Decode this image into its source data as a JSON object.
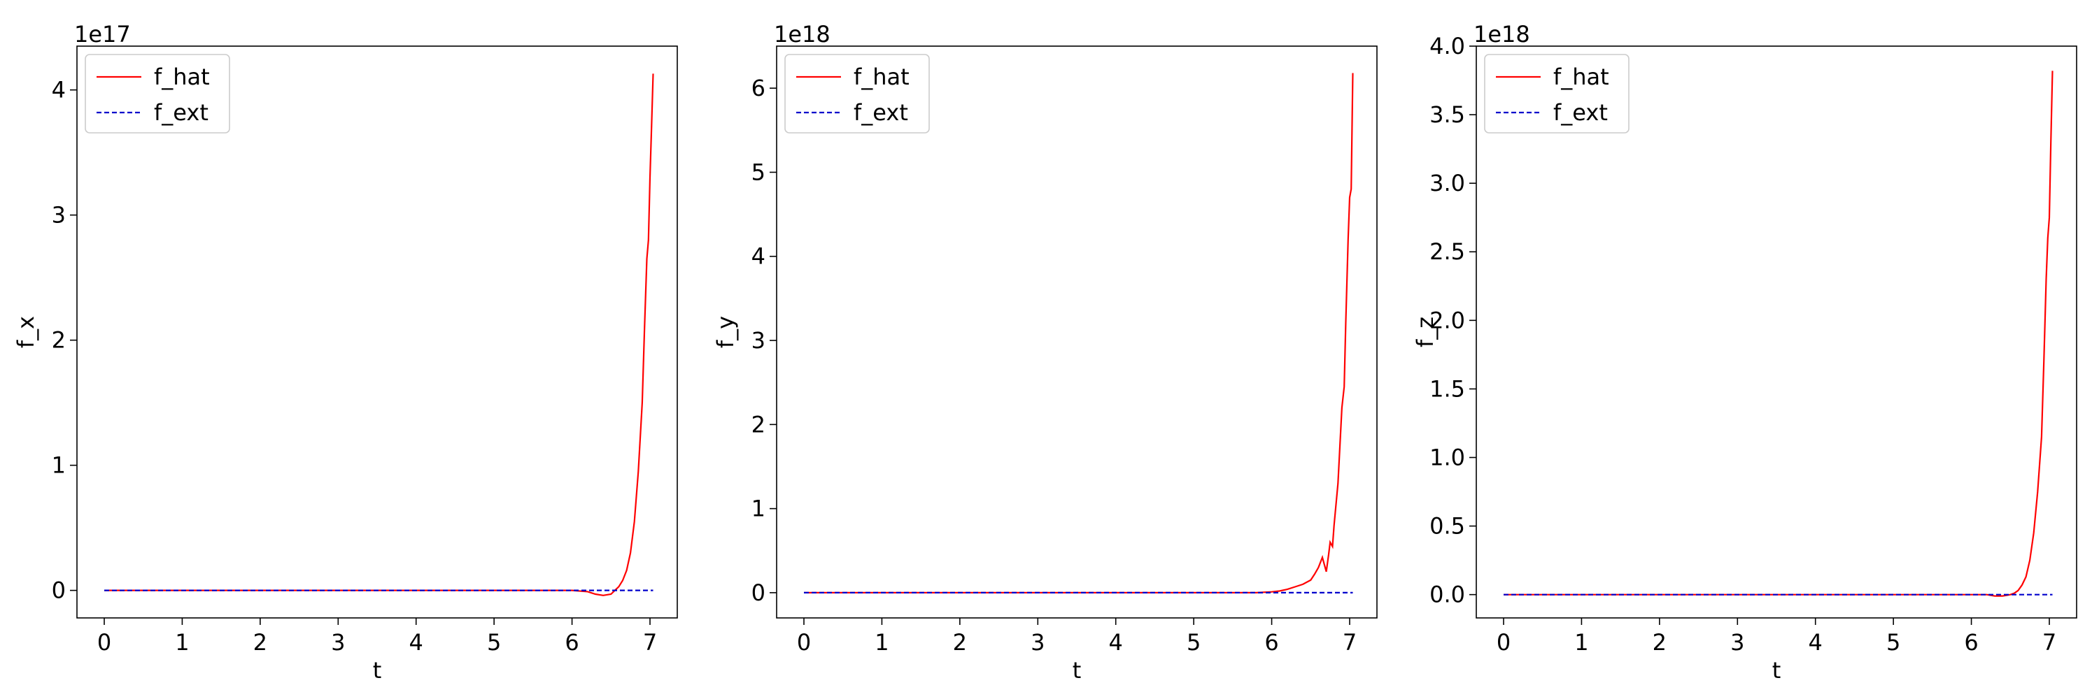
{
  "chart_data": [
    {
      "type": "line",
      "xlabel": "t",
      "ylabel": "f_x",
      "offset_text": "1e17",
      "xlim": [
        -0.35,
        7.35
      ],
      "ylim": [
        -0.22,
        4.35
      ],
      "xticks": [
        0,
        1,
        2,
        3,
        4,
        5,
        6,
        7
      ],
      "yticks": [
        0,
        1,
        2,
        3,
        4
      ],
      "ytick_labels": [
        "0",
        "1",
        "2",
        "3",
        "4"
      ],
      "legend_position": "top-left",
      "series": [
        {
          "name": "f_hat",
          "color": "#ff0000",
          "dash": "solid",
          "x": [
            0,
            1,
            2,
            3,
            4,
            5,
            5.8,
            6.0,
            6.2,
            6.3,
            6.4,
            6.5,
            6.55,
            6.6,
            6.65,
            6.7,
            6.75,
            6.8,
            6.85,
            6.9,
            6.93,
            6.96,
            6.98,
            7.0,
            7.02,
            7.04
          ],
          "y": [
            0,
            0,
            0,
            0,
            0,
            0,
            0,
            0,
            -0.01,
            -0.03,
            -0.04,
            -0.03,
            0.0,
            0.03,
            0.08,
            0.16,
            0.3,
            0.55,
            0.95,
            1.5,
            2.1,
            2.65,
            2.8,
            3.3,
            3.7,
            4.13
          ]
        },
        {
          "name": "f_ext",
          "color": "#0000cc",
          "dash": "dashed",
          "x": [
            0,
            7.04
          ],
          "y": [
            0,
            0
          ]
        }
      ]
    },
    {
      "type": "line",
      "xlabel": "t",
      "ylabel": "f_y",
      "offset_text": "1e18",
      "xlim": [
        -0.35,
        7.35
      ],
      "ylim": [
        -0.3,
        6.5
      ],
      "xticks": [
        0,
        1,
        2,
        3,
        4,
        5,
        6,
        7
      ],
      "yticks": [
        0,
        1,
        2,
        3,
        4,
        5,
        6
      ],
      "ytick_labels": [
        "0",
        "1",
        "2",
        "3",
        "4",
        "5",
        "6"
      ],
      "legend_position": "top-left",
      "series": [
        {
          "name": "f_hat",
          "color": "#ff0000",
          "dash": "solid",
          "x": [
            0,
            1,
            2,
            3,
            4,
            5,
            5.8,
            6.0,
            6.1,
            6.2,
            6.3,
            6.4,
            6.5,
            6.55,
            6.6,
            6.65,
            6.7,
            6.73,
            6.75,
            6.78,
            6.8,
            6.85,
            6.9,
            6.93,
            6.95,
            6.98,
            7.0,
            7.02,
            7.04
          ],
          "y": [
            0,
            0,
            0,
            0,
            0,
            0,
            0,
            0.01,
            0.02,
            0.04,
            0.07,
            0.1,
            0.15,
            0.22,
            0.3,
            0.42,
            0.25,
            0.45,
            0.6,
            0.55,
            0.8,
            1.3,
            2.2,
            2.45,
            3.2,
            4.2,
            4.7,
            4.8,
            6.18
          ]
        },
        {
          "name": "f_ext",
          "color": "#0000cc",
          "dash": "dashed",
          "x": [
            0,
            7.04
          ],
          "y": [
            0,
            0
          ]
        }
      ]
    },
    {
      "type": "line",
      "xlabel": "t",
      "ylabel": "f_z",
      "offset_text": "1e18",
      "xlim": [
        -0.35,
        7.35
      ],
      "ylim": [
        -0.17,
        4.0
      ],
      "xticks": [
        0,
        1,
        2,
        3,
        4,
        5,
        6,
        7
      ],
      "yticks": [
        0.0,
        0.5,
        1.0,
        1.5,
        2.0,
        2.5,
        3.0,
        3.5,
        4.0
      ],
      "ytick_labels": [
        "0.0",
        "0.5",
        "1.0",
        "1.5",
        "2.0",
        "2.5",
        "3.0",
        "3.5",
        "4.0"
      ],
      "legend_position": "top-left",
      "series": [
        {
          "name": "f_hat",
          "color": "#ff0000",
          "dash": "solid",
          "x": [
            0,
            1,
            2,
            3,
            4,
            5,
            5.8,
            6.0,
            6.2,
            6.3,
            6.4,
            6.5,
            6.55,
            6.6,
            6.65,
            6.7,
            6.75,
            6.8,
            6.85,
            6.9,
            6.93,
            6.96,
            6.98,
            7.0,
            7.02,
            7.04
          ],
          "y": [
            0,
            0,
            0,
            0,
            0,
            0,
            0,
            0,
            0.0,
            -0.01,
            -0.01,
            0.0,
            0.01,
            0.03,
            0.07,
            0.13,
            0.25,
            0.45,
            0.75,
            1.15,
            1.7,
            2.3,
            2.6,
            2.75,
            3.3,
            3.82
          ]
        },
        {
          "name": "f_ext",
          "color": "#0000cc",
          "dash": "dashed",
          "x": [
            0,
            7.04
          ],
          "y": [
            0,
            0
          ]
        }
      ]
    }
  ]
}
